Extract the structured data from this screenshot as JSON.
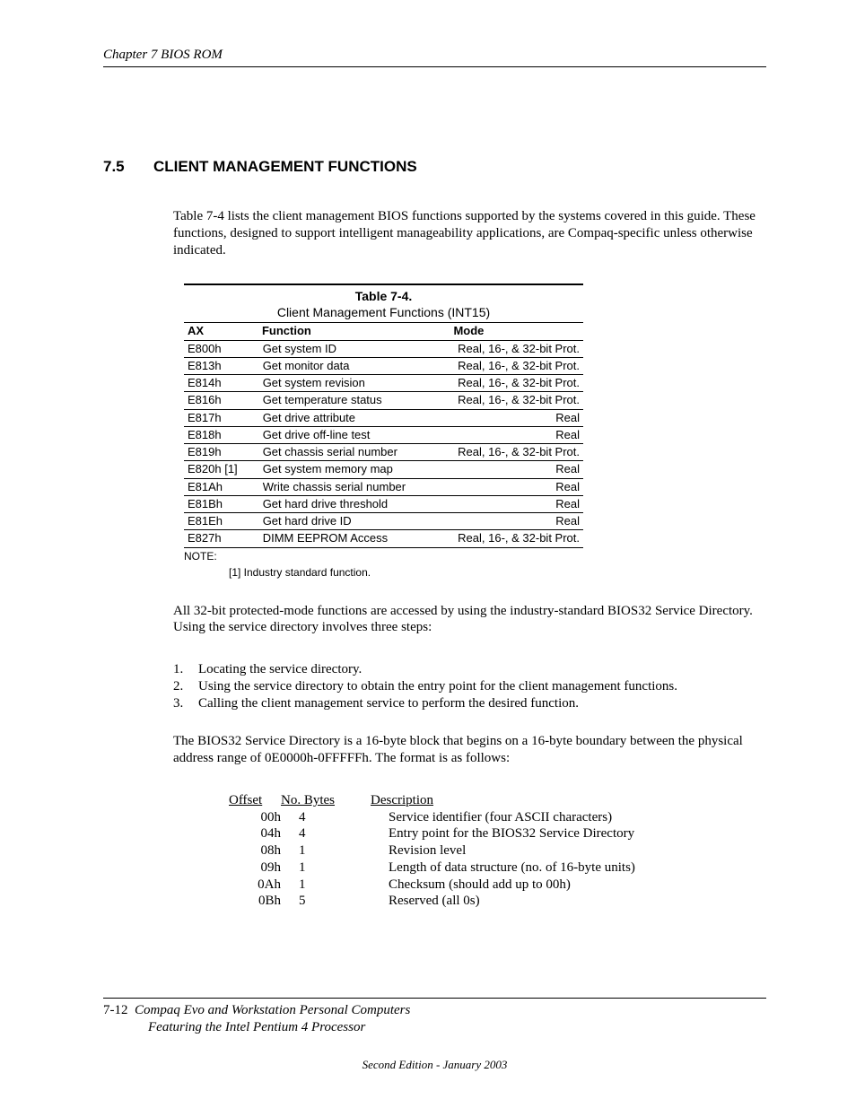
{
  "header": {
    "chapter_line": "Chapter 7  BIOS ROM"
  },
  "section": {
    "number": "7.5",
    "title": "CLIENT MANAGEMENT FUNCTIONS"
  },
  "intro_para": "Table 7-4 lists the client management BIOS functions supported by the systems covered in this guide. These functions, designed to support intelligent manageability applications, are Compaq-specific unless otherwise indicated.",
  "table": {
    "caption_num": "Table 7-4.",
    "caption_title": "Client Management Functions (INT15)",
    "columns": {
      "ax": "AX",
      "fn": "Function",
      "mode": "Mode"
    },
    "rows": [
      {
        "ax": "E800h",
        "fn": "Get system ID",
        "mode": "Real, 16-, & 32-bit Prot."
      },
      {
        "ax": "E813h",
        "fn": "Get monitor data",
        "mode": "Real, 16-, & 32-bit Prot."
      },
      {
        "ax": "E814h",
        "fn": "Get system revision",
        "mode": "Real, 16-, & 32-bit Prot."
      },
      {
        "ax": "E816h",
        "fn": "Get temperature status",
        "mode": "Real, 16-, & 32-bit Prot."
      },
      {
        "ax": "E817h",
        "fn": "Get drive attribute",
        "mode": "Real"
      },
      {
        "ax": "E818h",
        "fn": "Get drive off-line test",
        "mode": "Real"
      },
      {
        "ax": "E819h",
        "fn": "Get chassis serial number",
        "mode": "Real, 16-, & 32-bit Prot."
      },
      {
        "ax": "E820h [1]",
        "fn": "Get system memory map",
        "mode": "Real"
      },
      {
        "ax": "E81Ah",
        "fn": "Write chassis serial number",
        "mode": "Real"
      },
      {
        "ax": "E81Bh",
        "fn": "Get hard drive threshold",
        "mode": "Real"
      },
      {
        "ax": "E81Eh",
        "fn": "Get hard drive ID",
        "mode": "Real"
      },
      {
        "ax": "E827h",
        "fn": "DIMM EEPROM Access",
        "mode": "Real, 16-, & 32-bit Prot."
      }
    ],
    "note_label": "NOTE:",
    "note_text": "[1] Industry standard function."
  },
  "para2": "All 32-bit protected-mode functions are accessed by using the industry-standard BIOS32 Service Directory.  Using the service directory involves three steps:",
  "steps": [
    "Locating the service directory.",
    "Using the service directory to obtain the entry point for the client management functions.",
    "Calling the client management service to perform the desired function."
  ],
  "para3": "The BIOS32 Service Directory is a 16-byte block that begins on a 16-byte boundary between the physical address range of 0E0000h-0FFFFFh. The format is as follows:",
  "offset_table": {
    "head": {
      "off": "Offset",
      "nb": "No. Bytes",
      "desc": "Description"
    },
    "rows": [
      {
        "off": "00h",
        "nb": "4",
        "desc": "Service identifier (four ASCII characters)"
      },
      {
        "off": "04h",
        "nb": "4",
        "desc": "Entry point for the BIOS32 Service Directory"
      },
      {
        "off": "08h",
        "nb": "1",
        "desc": "Revision level"
      },
      {
        "off": "09h",
        "nb": "1",
        "desc": "Length of data structure (no. of 16-byte units)"
      },
      {
        "off": "0Ah",
        "nb": "1",
        "desc": "Checksum (should add up to 00h)"
      },
      {
        "off": "0Bh",
        "nb": "5",
        "desc": "Reserved (all 0s)"
      }
    ]
  },
  "footer": {
    "page": "7-12",
    "title_l1": "Compaq Evo and Workstation Personal Computers",
    "title_l2": "Featuring the Intel Pentium 4 Processor",
    "edition": "Second Edition -  January 2003"
  }
}
